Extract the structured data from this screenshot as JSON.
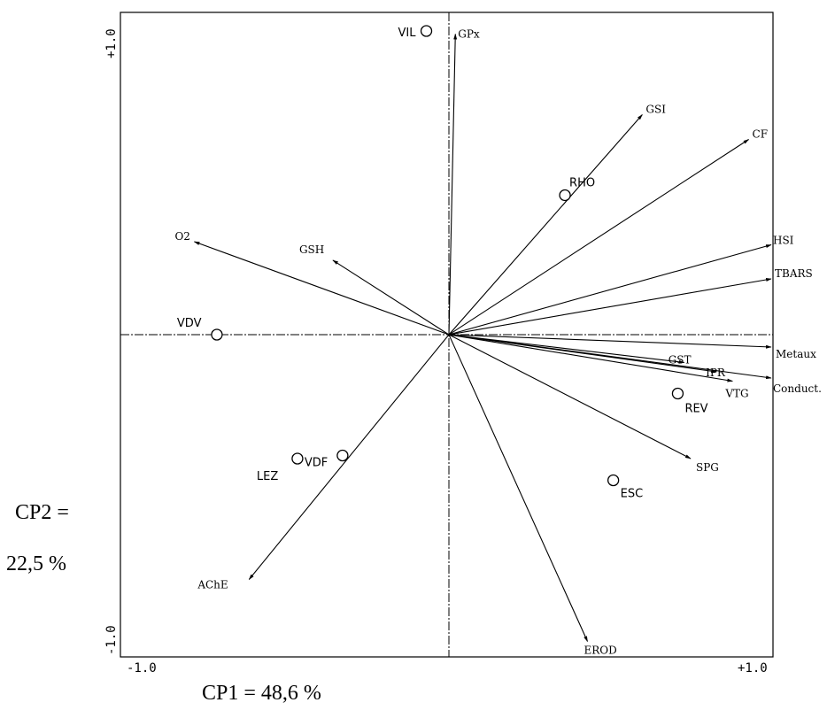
{
  "chart_data": {
    "type": "scatter",
    "subtype": "pca-biplot",
    "xlim": [
      -1.0,
      1.0
    ],
    "ylim": [
      -1.0,
      1.0
    ],
    "x_ticks": [
      "-1.0",
      "+1.0"
    ],
    "y_ticks": [
      "-1.0",
      "+1.0"
    ],
    "grid": false,
    "colors": {
      "ink": "#000000",
      "background": "#ffffff"
    },
    "axis_labels": {
      "x": "CP1 = 48,6 %",
      "y_line1": "CP2 =",
      "y_line2": "22,5 %"
    },
    "variables": [
      {
        "name": "GPx",
        "x": 0.02,
        "y": 0.97
      },
      {
        "name": "GSI",
        "x": 0.6,
        "y": 0.71
      },
      {
        "name": "CF",
        "x": 0.93,
        "y": 0.63
      },
      {
        "name": "HSI",
        "x": 1.0,
        "y": 0.29
      },
      {
        "name": "TBARS",
        "x": 1.0,
        "y": 0.18
      },
      {
        "name": "Metaux",
        "x": 1.0,
        "y": -0.04
      },
      {
        "name": "Conduct.",
        "x": 1.0,
        "y": -0.14
      },
      {
        "name": "VTG",
        "x": 0.88,
        "y": -0.15
      },
      {
        "name": "IPR",
        "x": 0.83,
        "y": -0.12
      },
      {
        "name": "GST",
        "x": 0.73,
        "y": -0.09
      },
      {
        "name": "SPG",
        "x": 0.75,
        "y": -0.4
      },
      {
        "name": "EROD",
        "x": 0.43,
        "y": -0.99
      },
      {
        "name": "AChE",
        "x": -0.62,
        "y": -0.79
      },
      {
        "name": "O2",
        "x": -0.79,
        "y": 0.3
      },
      {
        "name": "GSH",
        "x": -0.36,
        "y": 0.24
      }
    ],
    "sites": [
      {
        "name": "VIL",
        "x": -0.07,
        "y": 0.98
      },
      {
        "name": "RHO",
        "x": 0.36,
        "y": 0.45
      },
      {
        "name": "VDV",
        "x": -0.72,
        "y": 0.0
      },
      {
        "name": "REV",
        "x": 0.71,
        "y": -0.19
      },
      {
        "name": "ESC",
        "x": 0.51,
        "y": -0.47
      },
      {
        "name": "LEZ",
        "x": -0.47,
        "y": -0.4
      },
      {
        "name": "VDF",
        "x": -0.33,
        "y": -0.39
      }
    ]
  }
}
